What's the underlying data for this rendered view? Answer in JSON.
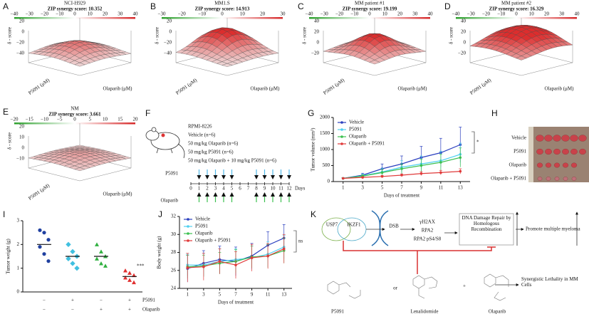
{
  "surfaces": [
    {
      "letter": "A",
      "title": "NCI-H929",
      "score": "ZIP synergy score: 10.352",
      "colorbar_ticks": [
        "−40",
        "−30",
        "−20",
        "−10",
        "0",
        "10",
        "20",
        "30",
        "40"
      ],
      "z_ticks": [
        "20",
        "0",
        "−20",
        "−40"
      ],
      "z_label": "δ - score",
      "y_label": "P5091 (μM)",
      "x_label": "Olaparib (μM)"
    },
    {
      "letter": "B",
      "title": "MM1.S",
      "score": "ZIP synergy score: 14.913",
      "colorbar_ticks": [
        "−30",
        "−20",
        "−10",
        "0",
        "10",
        "20",
        "30"
      ],
      "z_ticks": [
        "20",
        "0",
        "−20",
        "−40"
      ],
      "z_label": "δ - score",
      "y_label": "P5091 (μM)",
      "x_label": "Olaparib (μM)"
    },
    {
      "letter": "C",
      "title": "MM patient #1",
      "score": "ZIP synergy score: 19.199",
      "colorbar_ticks": [
        "−40",
        "−30",
        "−20",
        "−10",
        "0",
        "10",
        "20",
        "30",
        "40"
      ],
      "z_ticks": [
        "40",
        "20",
        "0",
        "−20"
      ],
      "z_label": "δ - score",
      "y_label": "P5091 (μM)",
      "x_label": "Olaparib (μM)"
    },
    {
      "letter": "D",
      "title": "MM patient #2",
      "score": "ZIP synergy score: 16.329",
      "colorbar_ticks": [
        "−40",
        "−30",
        "−20",
        "−10",
        "0",
        "10",
        "20",
        "30",
        "40"
      ],
      "z_ticks": [
        "40",
        "20",
        "0",
        "−20"
      ],
      "z_label": "δ - score",
      "y_label": "P5091 (μM)",
      "x_label": "Olaparib (μM)"
    },
    {
      "letter": "E",
      "title": "NM",
      "score": "ZIP synergy score: 3.661",
      "colorbar_ticks": [
        "−20",
        "−15",
        "−10",
        "−5",
        "0",
        "5",
        "10",
        "15",
        "20"
      ],
      "z_ticks": [
        "20",
        "10",
        "0",
        "−10"
      ],
      "z_label": "δ - score",
      "y_label": "P5091 (μM)",
      "x_label": "Olaparib (μM)"
    }
  ],
  "panel_f": {
    "letter": "F",
    "cell_line": "RPMI-8226",
    "groups": [
      "Vehicle  (n=6)",
      "50 mg/kg Olaparib (n=6)",
      "50 mg/kg P5091 (n=6)",
      "50 mg/kg Olaparib + 10 mg/kg P5091 (n=6)"
    ],
    "top_drug": "P5091",
    "bottom_drug": "Olaparib",
    "days_label": "Days",
    "days": [
      0,
      1,
      2,
      3,
      4,
      5,
      6,
      7,
      8,
      9,
      10,
      11,
      12
    ],
    "dose_days": [
      1,
      2,
      3,
      4,
      5,
      8,
      9,
      10,
      11,
      12
    ]
  },
  "panel_g": {
    "letter": "G",
    "type": "line",
    "y_label": "Tumor volume (mm³)",
    "x_label": "Days of treatment",
    "x": [
      1,
      3,
      5,
      7,
      9,
      11,
      13
    ],
    "xlim": [
      0,
      14
    ],
    "xticks": [
      1,
      3,
      5,
      7,
      9,
      11,
      13
    ],
    "ylim": [
      0,
      2000
    ],
    "yticks": [
      0,
      500,
      1000,
      1500,
      2000
    ],
    "annotation": "*",
    "series": [
      {
        "name": "Vehicle",
        "color": "#2a3fbf",
        "values": [
          100,
          200,
          400,
          550,
          750,
          900,
          1150
        ],
        "errors": [
          20,
          60,
          150,
          250,
          350,
          450,
          550
        ]
      },
      {
        "name": "P5091",
        "color": "#4fd0f0",
        "values": [
          100,
          180,
          300,
          450,
          550,
          650,
          850
        ],
        "errors": [
          20,
          50,
          120,
          200,
          250,
          300,
          350
        ]
      },
      {
        "name": "Olaparib",
        "color": "#3cc050",
        "values": [
          100,
          170,
          280,
          400,
          500,
          600,
          750
        ],
        "errors": [
          20,
          40,
          100,
          150,
          200,
          250,
          300
        ]
      },
      {
        "name": "Olaparib + P5091",
        "color": "#e03a3a",
        "values": [
          100,
          130,
          160,
          200,
          250,
          280,
          320
        ],
        "errors": [
          10,
          20,
          30,
          40,
          60,
          70,
          80
        ]
      }
    ]
  },
  "panel_h": {
    "letter": "H",
    "rows": [
      "Vehicle",
      "P5091",
      "Olaparib",
      "Olaparib + P5091"
    ]
  },
  "panel_i": {
    "letter": "I",
    "y_label": "Tumor weight (g)",
    "ylim": [
      0,
      3
    ],
    "yticks": [
      0,
      1,
      2,
      3
    ],
    "annotation": "***",
    "groups": [
      {
        "color": "#2040a0",
        "points": [
          2.6,
          2.5,
          2.2,
          1.9,
          1.6,
          1.3
        ],
        "mean": 2.0
      },
      {
        "color": "#40c0e0",
        "points": [
          2.0,
          1.7,
          1.5,
          1.4,
          1.2,
          1.0
        ],
        "mean": 1.5
      },
      {
        "color": "#30b040",
        "points": [
          2.0,
          1.7,
          1.5,
          1.4,
          1.2,
          1.1
        ],
        "mean": 1.5
      },
      {
        "color": "#e03030",
        "points": [
          0.9,
          0.8,
          0.7,
          0.6,
          0.5,
          0.4
        ],
        "mean": 0.65
      }
    ],
    "table": [
      {
        "label": "P5091",
        "marks": [
          "−",
          "+",
          "−",
          "+"
        ]
      },
      {
        "label": "Olaparib",
        "marks": [
          "−",
          "−",
          "+",
          "+"
        ]
      }
    ]
  },
  "panel_j": {
    "letter": "J",
    "type": "line",
    "y_label": "Body weight (g)",
    "x_label": "Days of treatment",
    "x": [
      1,
      3,
      5,
      7,
      9,
      11,
      13
    ],
    "xlim": [
      0,
      14
    ],
    "xticks": [
      1,
      3,
      5,
      7,
      9,
      11,
      13
    ],
    "ylim": [
      24,
      32
    ],
    "yticks": [
      24,
      26,
      28,
      30,
      32
    ],
    "annotation": "ns",
    "series": [
      {
        "name": "Vehicle",
        "color": "#2a3fbf",
        "values": [
          26.2,
          26.8,
          27.2,
          27.0,
          27.6,
          28.8,
          29.6
        ],
        "errors": [
          1.5,
          1.4,
          1.5,
          1.6,
          1.4,
          1.5,
          1.5
        ]
      },
      {
        "name": "P5091",
        "color": "#4fd0f0",
        "values": [
          26.6,
          26.6,
          27.0,
          27.2,
          27.4,
          27.8,
          28.6
        ],
        "errors": [
          1.2,
          1.3,
          1.4,
          1.2,
          1.3,
          1.4,
          1.3
        ]
      },
      {
        "name": "Olaparib",
        "color": "#3cc050",
        "values": [
          26.4,
          26.5,
          26.8,
          27.0,
          27.5,
          27.6,
          28.2
        ],
        "errors": [
          1.3,
          1.2,
          1.2,
          1.3,
          1.2,
          1.3,
          1.4
        ]
      },
      {
        "name": "Olaparib + P5091",
        "color": "#e03a3a",
        "values": [
          26.3,
          26.4,
          27.0,
          26.6,
          27.4,
          27.6,
          28.4
        ],
        "errors": [
          1.6,
          1.5,
          1.4,
          1.5,
          1.5,
          1.4,
          1.6
        ]
      }
    ]
  },
  "panel_k": {
    "letter": "K",
    "usp7": "USP7",
    "ikzf1": "IKZF1",
    "dsb": "DSB",
    "markers": [
      "γH2AX",
      "RPA2",
      "RPA2 pS4/S8"
    ],
    "repair": "DNA Damage Repair by Homologous Recombination",
    "promote": "Promote multiple myeloma",
    "lethality": "Synergistic Lethality in MM Cells",
    "drug1": "P5091",
    "or": "or",
    "drug2": "Lenalidomide",
    "plus": "+",
    "drug3": "Olaparib"
  }
}
